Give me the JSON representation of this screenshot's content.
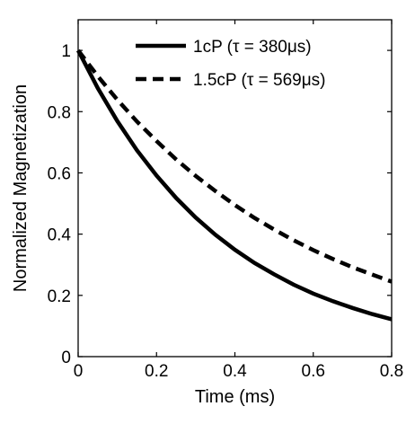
{
  "chart_data": {
    "type": "line",
    "xlabel": "Time (ms)",
    "ylabel": "Normalized Magnetization",
    "xlim": [
      0,
      0.8
    ],
    "ylim": [
      0,
      1.1
    ],
    "xticks": [
      0,
      0.2,
      0.4,
      0.6,
      0.8
    ],
    "xtick_labels": [
      "0",
      "0.2",
      "0.4",
      "0.6",
      "0.8"
    ],
    "yticks": [
      0,
      0.2,
      0.4,
      0.6,
      0.8,
      1
    ],
    "ytick_labels": [
      "0",
      "0.2",
      "0.4",
      "0.6",
      "0.8",
      "1"
    ],
    "grid": false,
    "legend_position": "top-right",
    "series": [
      {
        "name": "1cP (τ = 380μs)",
        "line_style": "solid",
        "color": "#000000",
        "x": [
          0,
          0.05,
          0.1,
          0.15,
          0.2,
          0.25,
          0.3,
          0.35,
          0.4,
          0.45,
          0.5,
          0.55,
          0.6,
          0.65,
          0.7,
          0.75,
          0.8
        ],
        "y": [
          1.0,
          0.877,
          0.769,
          0.674,
          0.591,
          0.518,
          0.454,
          0.398,
          0.349,
          0.306,
          0.269,
          0.235,
          0.206,
          0.181,
          0.159,
          0.139,
          0.122
        ]
      },
      {
        "name": "1.5cP (τ = 569μs)",
        "line_style": "dashed",
        "color": "#000000",
        "x": [
          0,
          0.05,
          0.1,
          0.15,
          0.2,
          0.25,
          0.3,
          0.35,
          0.4,
          0.45,
          0.5,
          0.55,
          0.6,
          0.65,
          0.7,
          0.75,
          0.8
        ],
        "y": [
          1.0,
          0.916,
          0.839,
          0.768,
          0.704,
          0.644,
          0.59,
          0.541,
          0.495,
          0.453,
          0.415,
          0.38,
          0.348,
          0.319,
          0.292,
          0.268,
          0.245
        ]
      }
    ]
  }
}
